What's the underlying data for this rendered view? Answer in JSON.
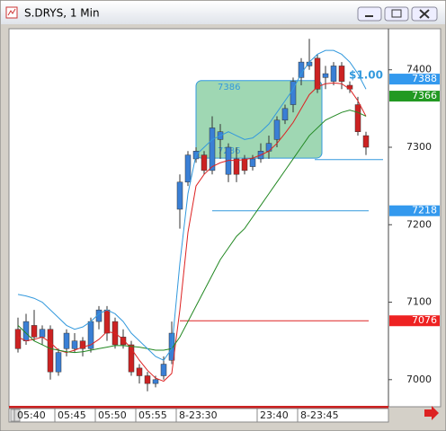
{
  "window": {
    "title": "S.DRYS, 1 Min"
  },
  "chart_data": {
    "type": "candlestick",
    "categories": [
      "05:40",
      null,
      null,
      null,
      null,
      "05:45",
      null,
      null,
      null,
      null,
      "05:50",
      null,
      null,
      null,
      null,
      "05:55",
      null,
      null,
      null,
      null,
      "8-23:30",
      null,
      null,
      null,
      null,
      null,
      null,
      null,
      null,
      null,
      "23:40",
      null,
      null,
      null,
      null,
      "8-23:45",
      null,
      null,
      null,
      null,
      null,
      null,
      null,
      null
    ],
    "open": [
      7065,
      7050,
      7070,
      7055,
      7065,
      7010,
      7040,
      7040,
      7050,
      7040,
      7075,
      7090,
      7075,
      7055,
      7045,
      7015,
      7005,
      6995,
      7005,
      7025,
      7220,
      7255,
      7285,
      7290,
      7270,
      7310,
      7265,
      7285,
      7285,
      7275,
      7285,
      7295,
      7310,
      7335,
      7355,
      7390,
      7405,
      7415,
      7390,
      7385,
      7405,
      7380,
      7355,
      7315
    ],
    "high": [
      7080,
      7085,
      7090,
      7070,
      7070,
      7040,
      7065,
      7060,
      7055,
      7080,
      7095,
      7095,
      7080,
      7065,
      7050,
      7020,
      7010,
      7005,
      7030,
      7075,
      7265,
      7295,
      7300,
      7295,
      7340,
      7330,
      7305,
      7300,
      7290,
      7290,
      7305,
      7315,
      7340,
      7355,
      7390,
      7415,
      7440,
      7420,
      7405,
      7410,
      7410,
      7385,
      7365,
      7320
    ],
    "low": [
      7035,
      7045,
      7050,
      7045,
      7000,
      7005,
      7030,
      7035,
      7030,
      7035,
      7065,
      7050,
      7040,
      7040,
      7005,
      6995,
      6985,
      6990,
      7000,
      7020,
      7195,
      7250,
      7280,
      7265,
      7265,
      7285,
      7255,
      7255,
      7265,
      7270,
      7280,
      7285,
      7300,
      7330,
      7345,
      7380,
      7400,
      7370,
      7375,
      7380,
      7375,
      7370,
      7315,
      7290
    ],
    "close": [
      7040,
      7075,
      7055,
      7065,
      7010,
      7035,
      7060,
      7050,
      7040,
      7075,
      7090,
      7060,
      7045,
      7045,
      7010,
      7005,
      6995,
      7000,
      7020,
      7060,
      7255,
      7290,
      7295,
      7270,
      7325,
      7320,
      7300,
      7265,
      7270,
      7285,
      7295,
      7305,
      7335,
      7350,
      7385,
      7410,
      7410,
      7375,
      7395,
      7405,
      7385,
      7375,
      7320,
      7300
    ],
    "up_color": "#3a7fd5",
    "down_color": "#cc2222",
    "series": [
      {
        "color": "#dd2222",
        "values": [
          7055,
          7050,
          7052,
          7055,
          7048,
          7038,
          7035,
          7038,
          7042,
          7045,
          7052,
          7062,
          7060,
          7052,
          7040,
          7025,
          7012,
          7002,
          6998,
          7008,
          7090,
          7190,
          7250,
          7265,
          7275,
          7280,
          7283,
          7283,
          7284,
          7286,
          7290,
          7295,
          7305,
          7318,
          7332,
          7350,
          7368,
          7378,
          7382,
          7383,
          7382,
          7375,
          7360,
          7340
        ]
      },
      {
        "color": "#228822",
        "values": [
          7070,
          7060,
          7050,
          7045,
          7040,
          7038,
          7036,
          7035,
          7036,
          7038,
          7040,
          7042,
          7044,
          7044,
          7043,
          7042,
          7040,
          7038,
          7038,
          7040,
          7055,
          7075,
          7095,
          7115,
          7135,
          7155,
          7170,
          7185,
          7195,
          7210,
          7225,
          7240,
          7255,
          7270,
          7285,
          7300,
          7315,
          7325,
          7335,
          7340,
          7345,
          7348,
          7345,
          7340
        ]
      },
      {
        "color": "#3399dd",
        "values": [
          7110,
          7108,
          7105,
          7100,
          7090,
          7080,
          7070,
          7065,
          7068,
          7075,
          7085,
          7090,
          7085,
          7075,
          7060,
          7050,
          7040,
          7030,
          7025,
          7040,
          7150,
          7240,
          7290,
          7300,
          7310,
          7315,
          7320,
          7315,
          7310,
          7312,
          7320,
          7330,
          7345,
          7360,
          7375,
          7395,
          7410,
          7420,
          7425,
          7425,
          7420,
          7410,
          7395,
          7375
        ]
      }
    ],
    "ylim": [
      6965,
      7453
    ],
    "yticks": [
      7000,
      7100,
      7200,
      7300,
      7400
    ],
    "box": {
      "top": 7386,
      "bottom": 7286,
      "color": "#7fc99a"
    },
    "levels": [
      {
        "value": 7284,
        "color": "#3399dd"
      },
      {
        "value": 7218,
        "color": "#3399dd"
      },
      {
        "value": 7076,
        "color": "#dd2222"
      }
    ],
    "price_tags": [
      {
        "value": 7388,
        "color": "#3399ee"
      },
      {
        "value": 7366,
        "color": "#229922"
      },
      {
        "value": 7218,
        "color": "#3399ee"
      },
      {
        "value": 7076,
        "color": "#ee2222"
      }
    ],
    "annotation": "$1.00"
  }
}
